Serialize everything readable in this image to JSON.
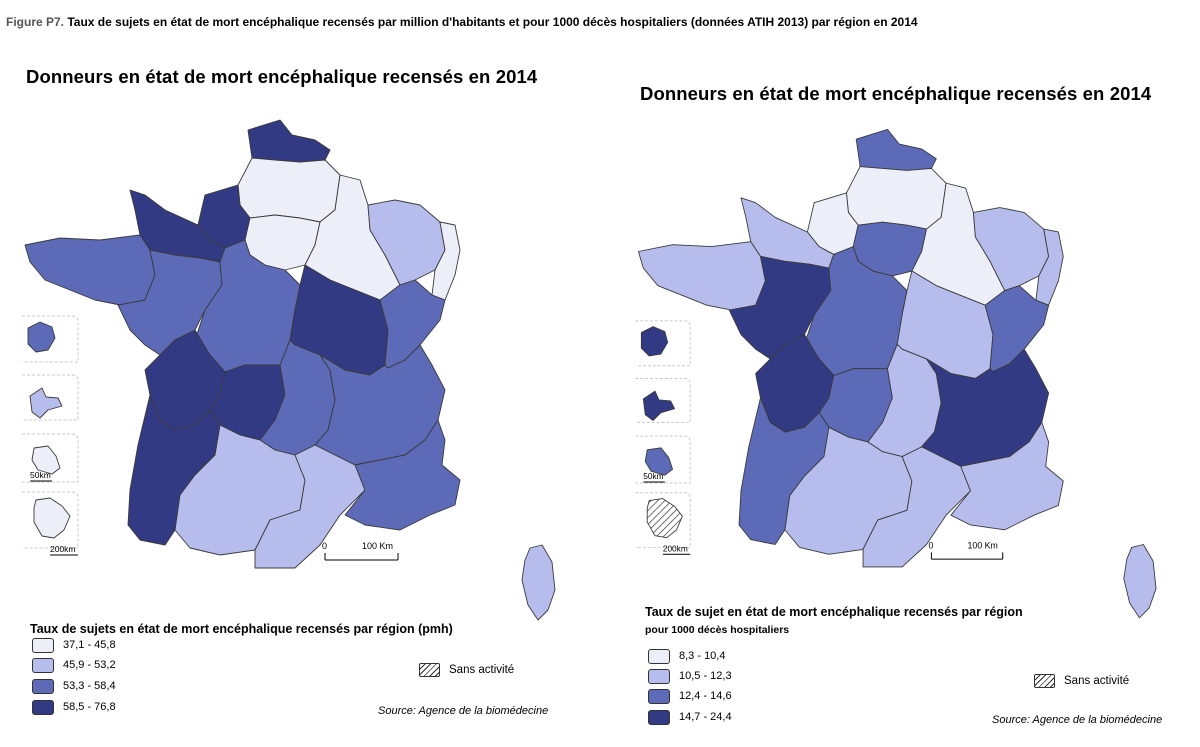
{
  "caption": {
    "label": "Figure P7.",
    "text": " Taux de sujets en état de mort encéphalique recensés par million d'habitants et pour 1000 décès hospitaliers (données ATIH 2013) par région en 2014"
  },
  "colors": {
    "class1": "#eceef8",
    "class2": "#b6bcec",
    "class3": "#5d6ab8",
    "class4": "#333a84",
    "hatch": "#333333"
  },
  "maps": [
    {
      "title": "Donneurs en état de mort encéphalique recensés en 2014",
      "legend_title": "Taux de sujets en état de mort encéphalique recensés par région (pmh)",
      "legend_subtitle": "",
      "legend": [
        "37,1 - 45,8",
        "45,9 - 53,2",
        "53,3 - 58,4",
        "58,5 - 76,8"
      ],
      "sans_activite": "Sans activité",
      "source": "Source: Agence de la biomédecine",
      "scale_zero": "0",
      "scale_label": "100 Km",
      "dom_scale_small": "50km",
      "dom_scale_large": "200km",
      "regions": {
        "nord-pas-de-calais": 4,
        "picardie": 1,
        "haute-normandie": 4,
        "basse-normandie": 4,
        "bretagne": 3,
        "pays-de-la-loire": 3,
        "centre": 3,
        "ile-de-france": 1,
        "champagne-ardenne": 1,
        "lorraine": 2,
        "alsace": 1,
        "franche-comte": 3,
        "bourgogne": 4,
        "poitou-charentes": 4,
        "limousin": 4,
        "auvergne": 3,
        "rhone-alpes": 3,
        "aquitaine": 4,
        "midi-pyrenees": 2,
        "languedoc-roussillon": 2,
        "paca": 3,
        "corse": 2
      },
      "dom": {
        "guadeloupe": 3,
        "martinique": 2,
        "reunion": 1,
        "guyane": 1
      }
    },
    {
      "title": "Donneurs en état de mort encéphalique recensés en 2014",
      "legend_title": "Taux de sujet en état de mort encéphalique recensés par région",
      "legend_subtitle": "pour 1000 décès hospitaliers",
      "legend": [
        "8,3 - 10,4",
        "10,5 - 12,3",
        "12,4 - 14,6",
        "14,7 - 24,4"
      ],
      "sans_activite": "Sans activité",
      "source": "Source: Agence de la biomédecine",
      "scale_zero": "0",
      "scale_label": "100 Km",
      "dom_scale_small": "50km",
      "dom_scale_large": "200km",
      "regions": {
        "nord-pas-de-calais": 3,
        "picardie": 1,
        "haute-normandie": 1,
        "basse-normandie": 2,
        "bretagne": 2,
        "pays-de-la-loire": 4,
        "centre": 3,
        "ile-de-france": 3,
        "champagne-ardenne": 1,
        "lorraine": 2,
        "alsace": 2,
        "franche-comte": 3,
        "bourgogne": 2,
        "poitou-charentes": 4,
        "limousin": 3,
        "auvergne": 2,
        "rhone-alpes": 4,
        "aquitaine": 3,
        "midi-pyrenees": 2,
        "languedoc-roussillon": 2,
        "paca": 2,
        "corse": 2
      },
      "dom": {
        "guadeloupe": 4,
        "martinique": 4,
        "reunion": 3,
        "guyane": 0
      }
    }
  ]
}
